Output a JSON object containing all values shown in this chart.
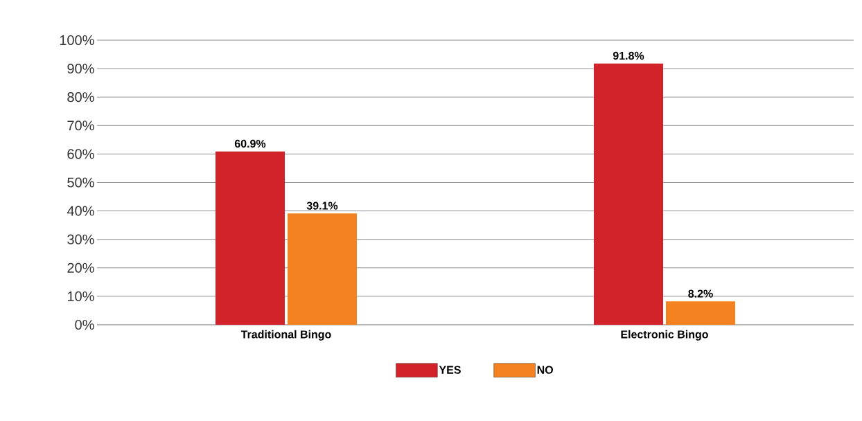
{
  "chart_data": {
    "type": "bar",
    "categories": [
      "Traditional Bingo",
      "Electronic Bingo"
    ],
    "series": [
      {
        "name": "YES",
        "color": "#d2232a",
        "values": [
          60.9,
          91.8
        ],
        "value_labels": [
          "60.9%",
          "91.8%"
        ]
      },
      {
        "name": "NO",
        "color": "#f58220",
        "values": [
          39.1,
          8.2
        ],
        "value_labels": [
          "39.1%",
          "8.2%"
        ]
      }
    ],
    "ylim": [
      0,
      100
    ],
    "yticks": [
      {
        "value": 0,
        "label": "0%"
      },
      {
        "value": 10,
        "label": "10%"
      },
      {
        "value": 20,
        "label": "20%"
      },
      {
        "value": 30,
        "label": "30%"
      },
      {
        "value": 40,
        "label": "40%"
      },
      {
        "value": 50,
        "label": "50%"
      },
      {
        "value": 60,
        "label": "60%"
      },
      {
        "value": 70,
        "label": "70%"
      },
      {
        "value": 80,
        "label": "80%"
      },
      {
        "value": 90,
        "label": "90%"
      },
      {
        "value": 100,
        "label": "100%"
      }
    ],
    "grid": "y",
    "legend": "bottom"
  }
}
